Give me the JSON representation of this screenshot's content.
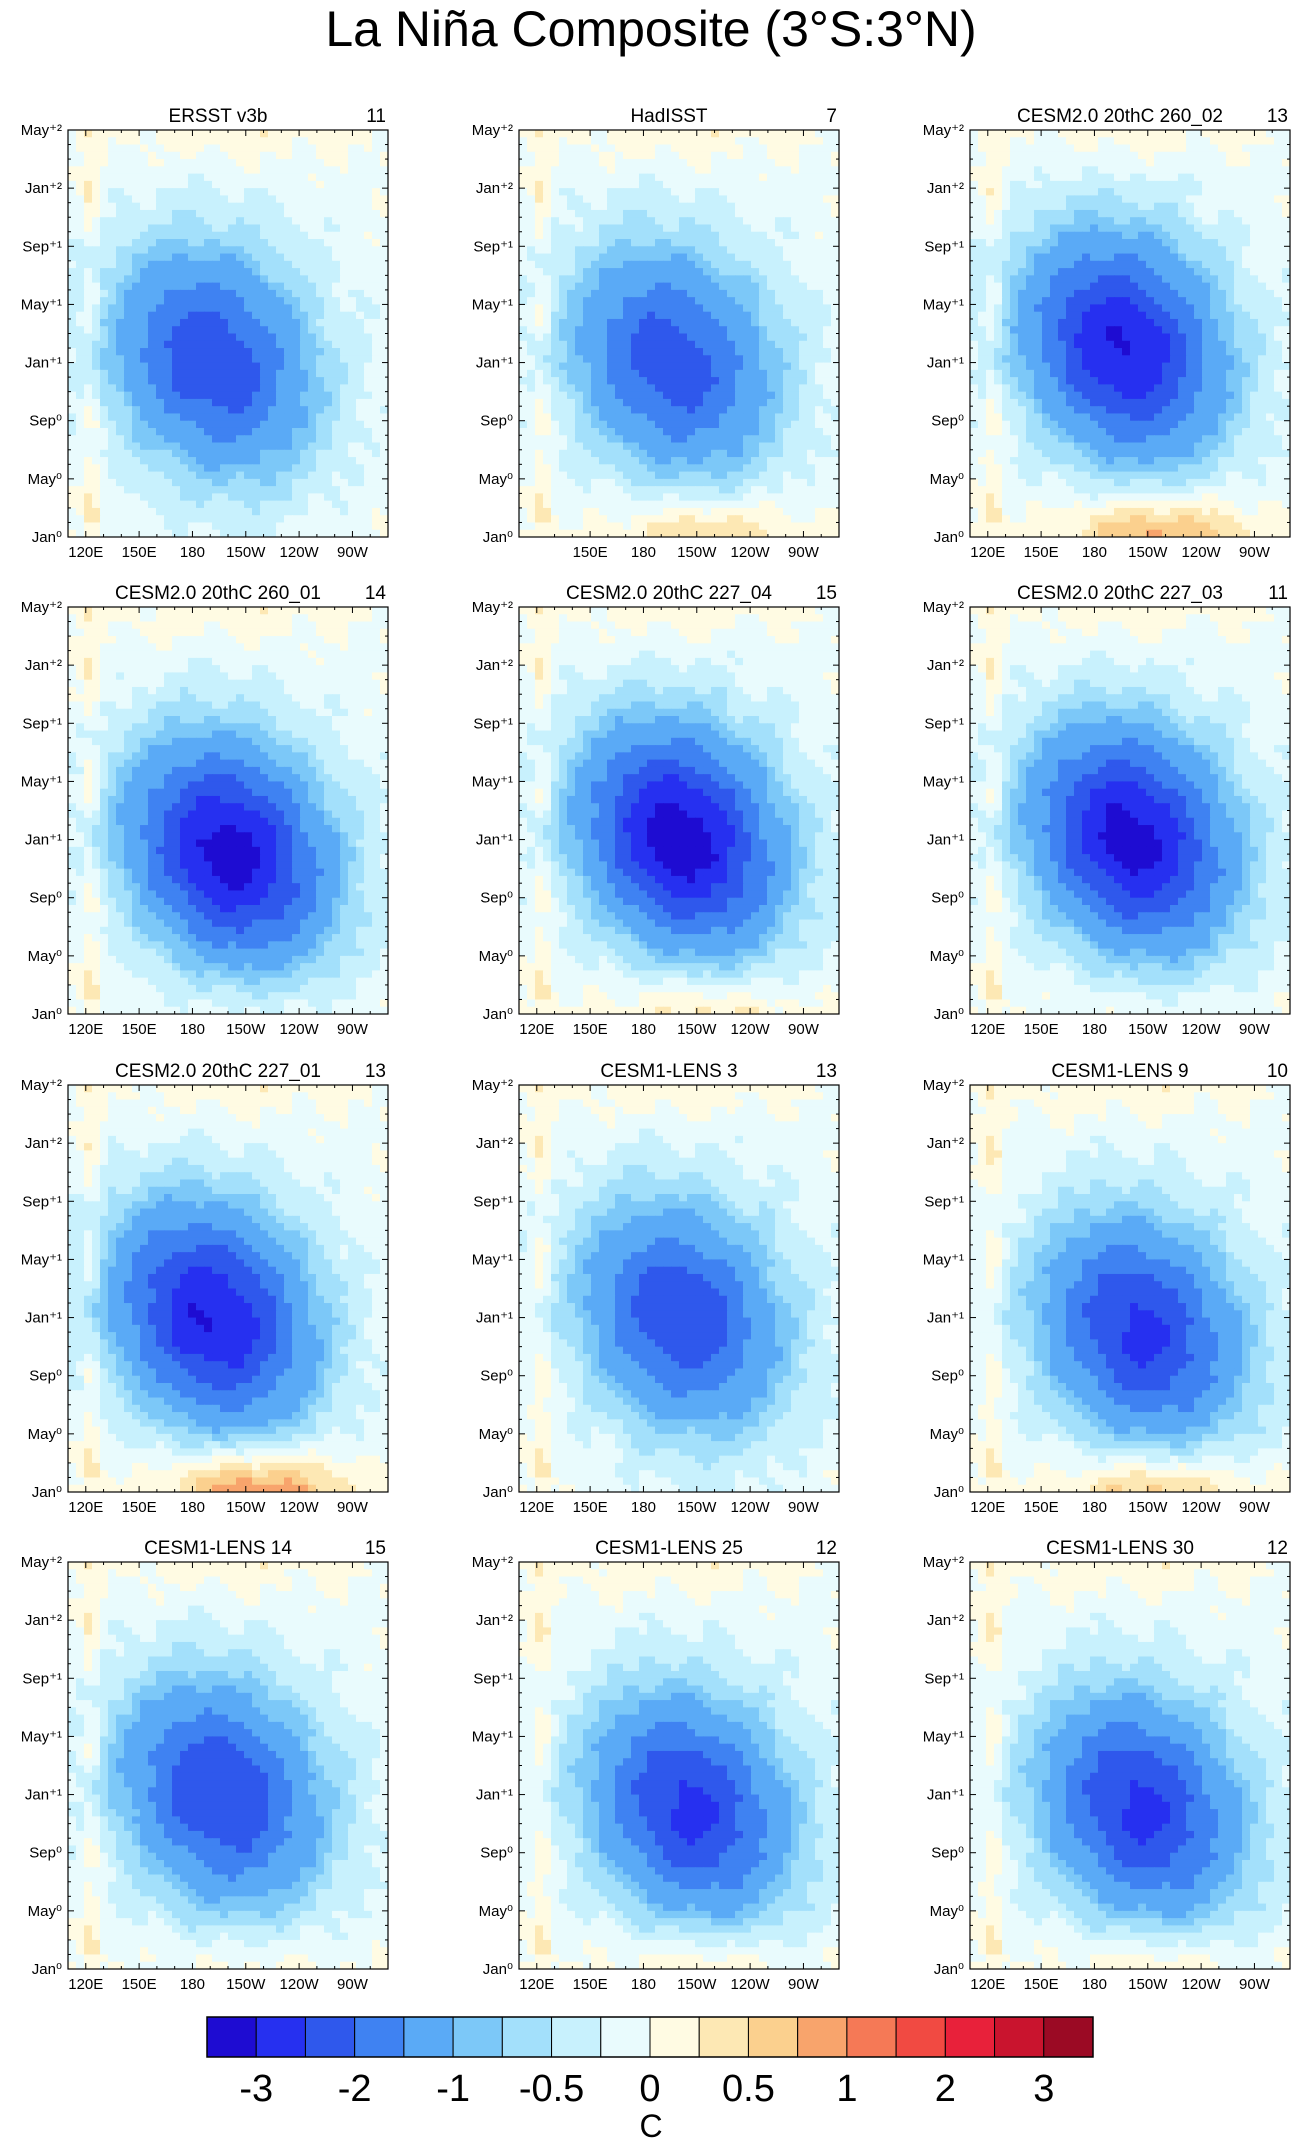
{
  "figure": {
    "title": "La Niña Composite (3°S:3°N)"
  },
  "chart_data": {
    "type": "heatmap",
    "variable": "SST anomaly composite (Hovmöller, longitude vs. time)",
    "x_ticks": [
      "120E",
      "150E",
      "180",
      "150W",
      "120W",
      "90W"
    ],
    "y_ticks": [
      "Jan⁰",
      "May⁰",
      "Sep⁰",
      "Jan⁺¹",
      "May⁺¹",
      "Sep⁺¹",
      "Jan⁺²",
      "May⁺²"
    ],
    "panels": [
      {
        "name": "ERSST v3b",
        "count": "11",
        "min_anom": -2.0,
        "center_lon": 190,
        "center_t": 12,
        "positive_onset": 0.0,
        "show_120E": true
      },
      {
        "name": "HadISST",
        "count": "7",
        "min_anom": -1.9,
        "center_lon": 195,
        "center_t": 12,
        "positive_onset": 0.7,
        "show_120E": false
      },
      {
        "name": "CESM2.0 20thC 260_02",
        "count": "13",
        "min_anom": -2.6,
        "center_lon": 195,
        "center_t": 13,
        "positive_onset": 1.0,
        "show_120E": true
      },
      {
        "name": "CESM2.0 20thC 260_01",
        "count": "14",
        "min_anom": -2.8,
        "center_lon": 200,
        "center_t": 11,
        "positive_onset": 0.2,
        "show_120E": true
      },
      {
        "name": "CESM2.0 20thC 227_04",
        "count": "15",
        "min_anom": -2.9,
        "center_lon": 200,
        "center_t": 12,
        "positive_onset": 0.6,
        "show_120E": true
      },
      {
        "name": "CESM2.0 20thC 227_03",
        "count": "11",
        "min_anom": -2.8,
        "center_lon": 200,
        "center_t": 12,
        "positive_onset": 0.2,
        "show_120E": true
      },
      {
        "name": "CESM2.0 20thC 227_01",
        "count": "13",
        "min_anom": -2.6,
        "center_lon": 190,
        "center_t": 12,
        "positive_onset": 1.2,
        "show_120E": true
      },
      {
        "name": "CESM1-LENS 3",
        "count": "13",
        "min_anom": -2.0,
        "center_lon": 200,
        "center_t": 12,
        "positive_onset": 0.0,
        "show_120E": true
      },
      {
        "name": "CESM1-LENS 9",
        "count": "10",
        "min_anom": -2.2,
        "center_lon": 205,
        "center_t": 11,
        "positive_onset": 0.9,
        "show_120E": true
      },
      {
        "name": "CESM1-LENS 14",
        "count": "15",
        "min_anom": -2.1,
        "center_lon": 195,
        "center_t": 12,
        "positive_onset": 0.3,
        "show_120E": true
      },
      {
        "name": "CESM1-LENS 25",
        "count": "12",
        "min_anom": -2.2,
        "center_lon": 205,
        "center_t": 11,
        "positive_onset": 0.5,
        "show_120E": true
      },
      {
        "name": "CESM1-LENS 30",
        "count": "12",
        "min_anom": -2.2,
        "center_lon": 205,
        "center_t": 11,
        "positive_onset": 0.5,
        "show_120E": true
      }
    ],
    "colorbar": {
      "levels": [
        -3,
        -2.5,
        -2,
        -1.5,
        -1,
        -0.75,
        -0.5,
        -0.25,
        0,
        0.25,
        0.5,
        0.75,
        1,
        1.5,
        2,
        2.5,
        3
      ],
      "labels": [
        "-3",
        "-2",
        "-1",
        "-0.5",
        "0",
        "0.5",
        "1",
        "2",
        "3"
      ],
      "label_levels": [
        -3,
        -2,
        -1,
        -0.5,
        0,
        0.5,
        1,
        2,
        3
      ],
      "colors": [
        "#1e0cd2",
        "#2630f0",
        "#2f58ec",
        "#3f82f2",
        "#5aaaf6",
        "#7cc8f8",
        "#a3e0fb",
        "#c8f1fd",
        "#e9fbfd",
        "#fffbe3",
        "#fde8b4",
        "#fbd08e",
        "#f8a46c",
        "#f57956",
        "#f14a42",
        "#e8213a",
        "#c9142e",
        "#9b0a24"
      ],
      "unit": "C"
    }
  }
}
